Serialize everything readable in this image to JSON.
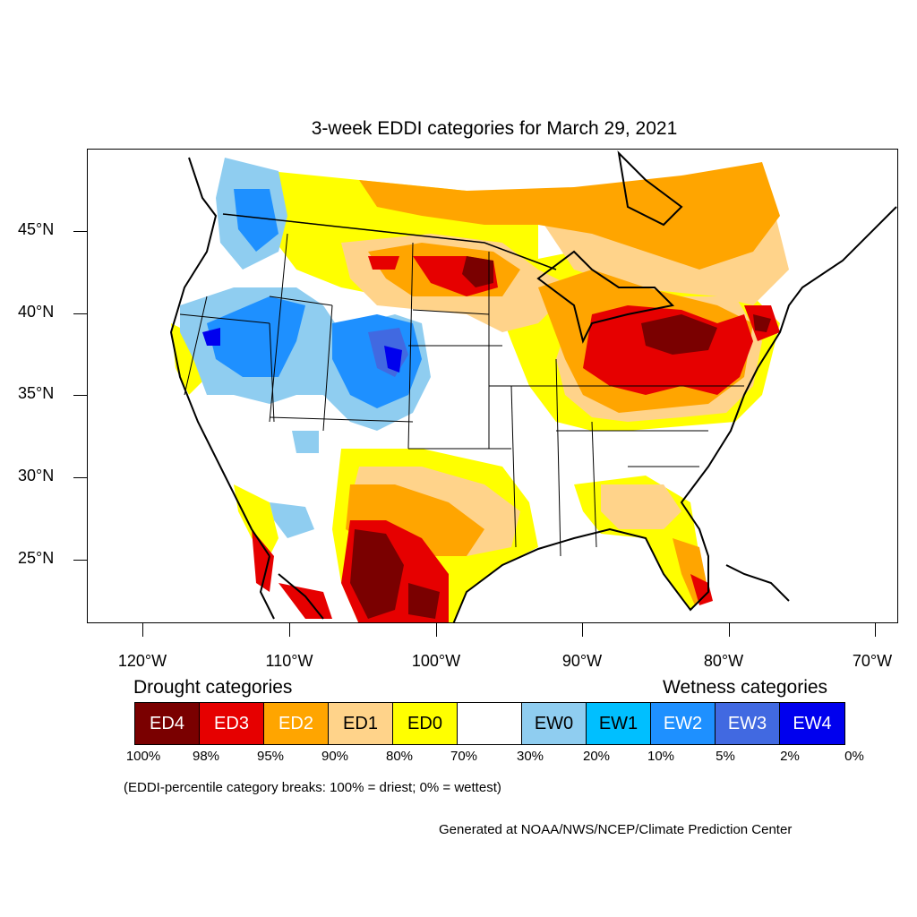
{
  "title": "3-week EDDI categories for March 29, 2021",
  "lat_labels": [
    "45°N",
    "40°N",
    "35°N",
    "30°N",
    "25°N"
  ],
  "lon_labels": [
    "120°W",
    "110°W",
    "100°W",
    "90°W",
    "80°W",
    "70°W"
  ],
  "legend": {
    "drought_heading": "Drought categories",
    "wetness_heading": "Wetness categories",
    "categories": [
      {
        "label": "ED4",
        "color": "#7a0000",
        "text_color": "#ffffff"
      },
      {
        "label": "ED3",
        "color": "#e60000",
        "text_color": "#ffffff"
      },
      {
        "label": "ED2",
        "color": "#ffa500",
        "text_color": "#ffffff"
      },
      {
        "label": "ED1",
        "color": "#ffd38a",
        "text_color": "#000000"
      },
      {
        "label": "ED0",
        "color": "#ffff00",
        "text_color": "#000000"
      },
      {
        "label": "",
        "color": "#ffffff",
        "text_color": "#000000"
      },
      {
        "label": "EW0",
        "color": "#8fcdf0",
        "text_color": "#000000"
      },
      {
        "label": "EW1",
        "color": "#00bfff",
        "text_color": "#000000"
      },
      {
        "label": "EW2",
        "color": "#1e90ff",
        "text_color": "#ffffff"
      },
      {
        "label": "EW3",
        "color": "#4169e1",
        "text_color": "#ffffff"
      },
      {
        "label": "EW4",
        "color": "#0000ee",
        "text_color": "#ffffff"
      }
    ],
    "breaks": [
      "100%",
      "98%",
      "95%",
      "90%",
      "80%",
      "70%",
      "30%",
      "20%",
      "10%",
      "5%",
      "2%",
      "0%"
    ]
  },
  "note": "(EDDI-percentile category breaks: 100% = driest; 0% = wettest)",
  "credit": "Generated at NOAA/NWS/NCEP/Climate Prediction Center"
}
